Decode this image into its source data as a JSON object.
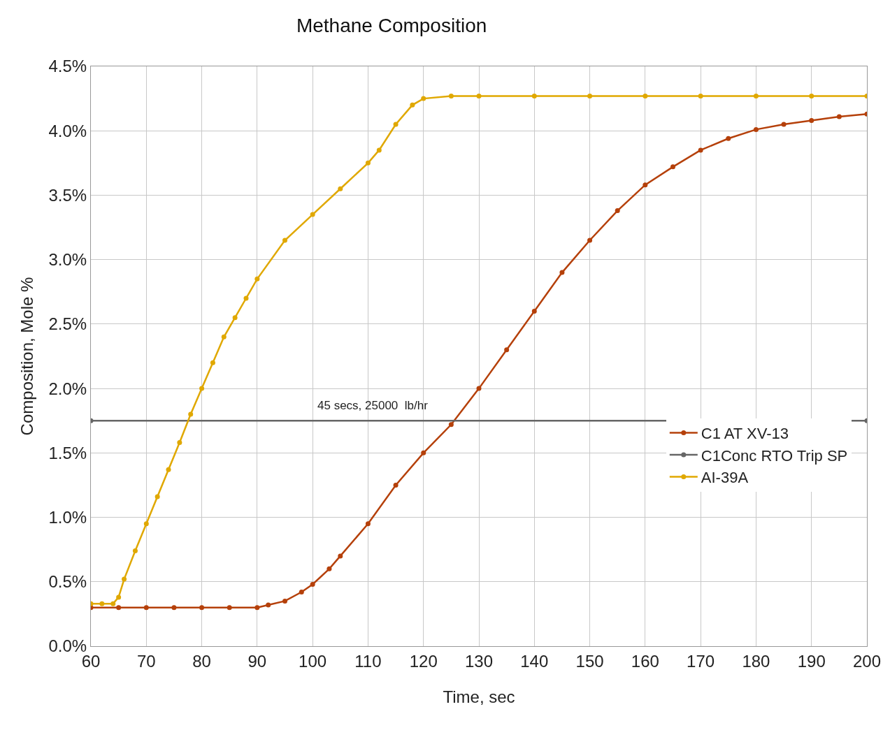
{
  "chart_data": {
    "type": "line",
    "title": "Methane Composition",
    "xlabel": "Time, sec",
    "ylabel": "Composition, Mole %",
    "annotations": [
      "45 secs, 25000  lb/hr"
    ],
    "xlim": [
      60,
      200
    ],
    "xticks": [
      60,
      70,
      80,
      90,
      100,
      110,
      120,
      130,
      140,
      150,
      160,
      170,
      180,
      190,
      200
    ],
    "ylim": [
      0,
      4.5
    ],
    "yticks": [
      {
        "value": 0,
        "label": "0.0%"
      },
      {
        "value": 0.5,
        "label": "0.5%"
      },
      {
        "value": 1,
        "label": "1.0%"
      },
      {
        "value": 1.5,
        "label": "1.5%"
      },
      {
        "value": 2,
        "label": "2.0%"
      },
      {
        "value": 2.5,
        "label": "2.5%"
      },
      {
        "value": 3,
        "label": "3.0%"
      },
      {
        "value": 3.5,
        "label": "3.5%"
      },
      {
        "value": 4,
        "label": "4.0%"
      },
      {
        "value": 4.5,
        "label": "4.5%"
      }
    ],
    "grid": true,
    "legend": "right",
    "marker": "circle",
    "line_style": "solid",
    "series": [
      {
        "name": "C1 AT XV-13",
        "color": "#b5400a",
        "x": [
          60,
          65,
          70,
          75,
          80,
          85,
          90,
          92,
          95,
          98,
          100,
          103,
          105,
          110,
          115,
          120,
          125,
          130,
          135,
          140,
          145,
          150,
          155,
          160,
          165,
          170,
          175,
          180,
          185,
          190,
          195,
          200
        ],
        "values": [
          0.3,
          0.3,
          0.3,
          0.3,
          0.3,
          0.3,
          0.3,
          0.32,
          0.35,
          0.42,
          0.48,
          0.6,
          0.7,
          0.95,
          1.25,
          1.5,
          1.72,
          2.0,
          2.3,
          2.6,
          2.9,
          3.15,
          3.38,
          3.58,
          3.72,
          3.85,
          3.94,
          4.01,
          4.05,
          4.08,
          4.11,
          4.13
        ]
      },
      {
        "name": "C1Conc RTO Trip SP",
        "color": "#666666",
        "x": [
          60,
          200
        ],
        "values": [
          1.75,
          1.75
        ]
      },
      {
        "name": "AI-39A",
        "color": "#e0a800",
        "x": [
          60,
          62,
          64,
          65,
          66,
          68,
          70,
          72,
          74,
          76,
          78,
          80,
          82,
          84,
          86,
          88,
          90,
          95,
          100,
          105,
          110,
          112,
          115,
          118,
          120,
          125,
          130,
          140,
          150,
          160,
          170,
          180,
          190,
          200
        ],
        "values": [
          0.33,
          0.33,
          0.33,
          0.38,
          0.52,
          0.74,
          0.95,
          1.16,
          1.37,
          1.58,
          1.8,
          2.0,
          2.2,
          2.4,
          2.55,
          2.7,
          2.85,
          3.15,
          3.35,
          3.55,
          3.75,
          3.85,
          4.05,
          4.2,
          4.25,
          4.27,
          4.27,
          4.27,
          4.27,
          4.27,
          4.27,
          4.27,
          4.27,
          4.27
        ]
      }
    ]
  }
}
